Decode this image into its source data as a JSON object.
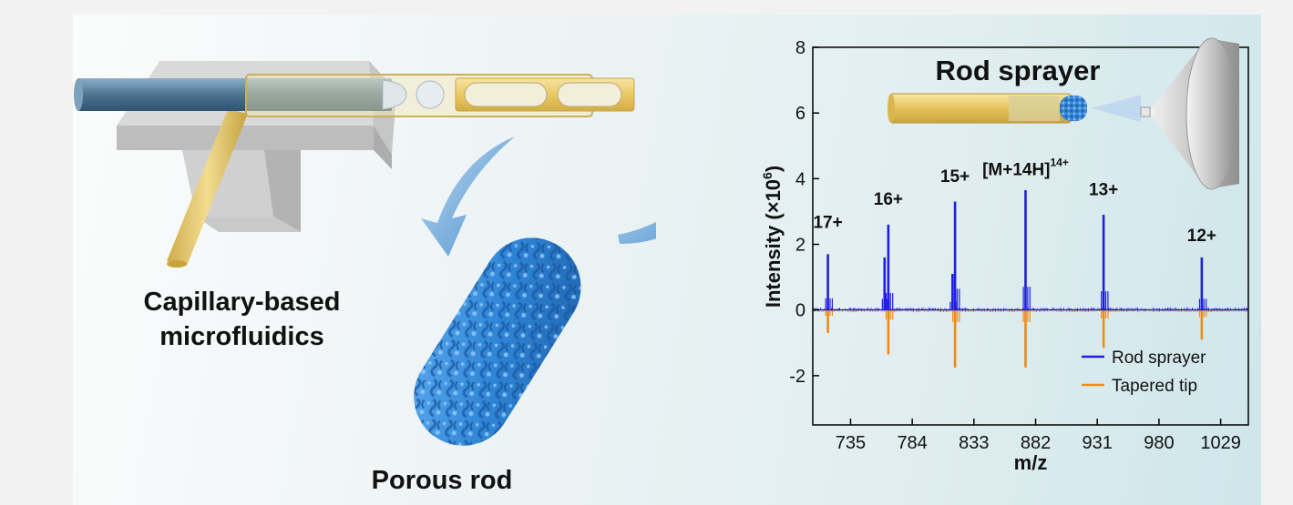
{
  "illustration": {
    "capillary_label_line1": "Capillary-based",
    "capillary_label_line2": "microfluidics",
    "porous_rod_label": "Porous rod",
    "rod_sprayer_title": "Rod sprayer"
  },
  "colors": {
    "rod_sprayer": "#1f1fdc",
    "tapered_tip": "#f08a16",
    "porous_rod": "#2f86d6",
    "arrow": "#6fa7d6",
    "yellow_capillary": "#e7c65a",
    "blue_capillary": "#5a7d97"
  },
  "chart_data": {
    "type": "line",
    "xlabel": "m/z",
    "ylabel": "Intensity (×10",
    "ylabel_exponent": "6",
    "ylabel_close": ")",
    "xlim": [
      705,
      1051
    ],
    "ylim": [
      -3.5,
      8
    ],
    "xticks": [
      735,
      784,
      833,
      882,
      931,
      980,
      1029
    ],
    "yticks": [
      -2,
      0,
      2,
      4,
      6,
      8
    ],
    "legend_position": "bottom-right",
    "series": [
      {
        "name": "Rod sprayer",
        "peaks": [
          {
            "mz": 717,
            "intensity": 1.7
          },
          {
            "mz": 762,
            "intensity": 1.6
          },
          {
            "mz": 765,
            "intensity": 2.6
          },
          {
            "mz": 816,
            "intensity": 1.1
          },
          {
            "mz": 818,
            "intensity": 3.3
          },
          {
            "mz": 874,
            "intensity": 3.65
          },
          {
            "mz": 936,
            "intensity": 2.9
          },
          {
            "mz": 1014,
            "intensity": 1.6
          }
        ]
      },
      {
        "name": "Tapered tip",
        "peaks": [
          {
            "mz": 717,
            "intensity": -0.7
          },
          {
            "mz": 765,
            "intensity": -1.35
          },
          {
            "mz": 818,
            "intensity": -1.75
          },
          {
            "mz": 874,
            "intensity": -1.75
          },
          {
            "mz": 936,
            "intensity": -1.15
          },
          {
            "mz": 1014,
            "intensity": -0.9
          }
        ]
      }
    ],
    "annotations": [
      {
        "text": "17+",
        "mz": 717,
        "y": 2.5
      },
      {
        "text": "16+",
        "mz": 765,
        "y": 3.2
      },
      {
        "text": "15+",
        "mz": 818,
        "y": 3.9
      },
      {
        "text": "[M+14H]",
        "sup": "14+",
        "mz": 874,
        "y": 4.1
      },
      {
        "text": "13+",
        "mz": 936,
        "y": 3.5
      },
      {
        "text": "12+",
        "mz": 1014,
        "y": 2.1
      }
    ]
  }
}
